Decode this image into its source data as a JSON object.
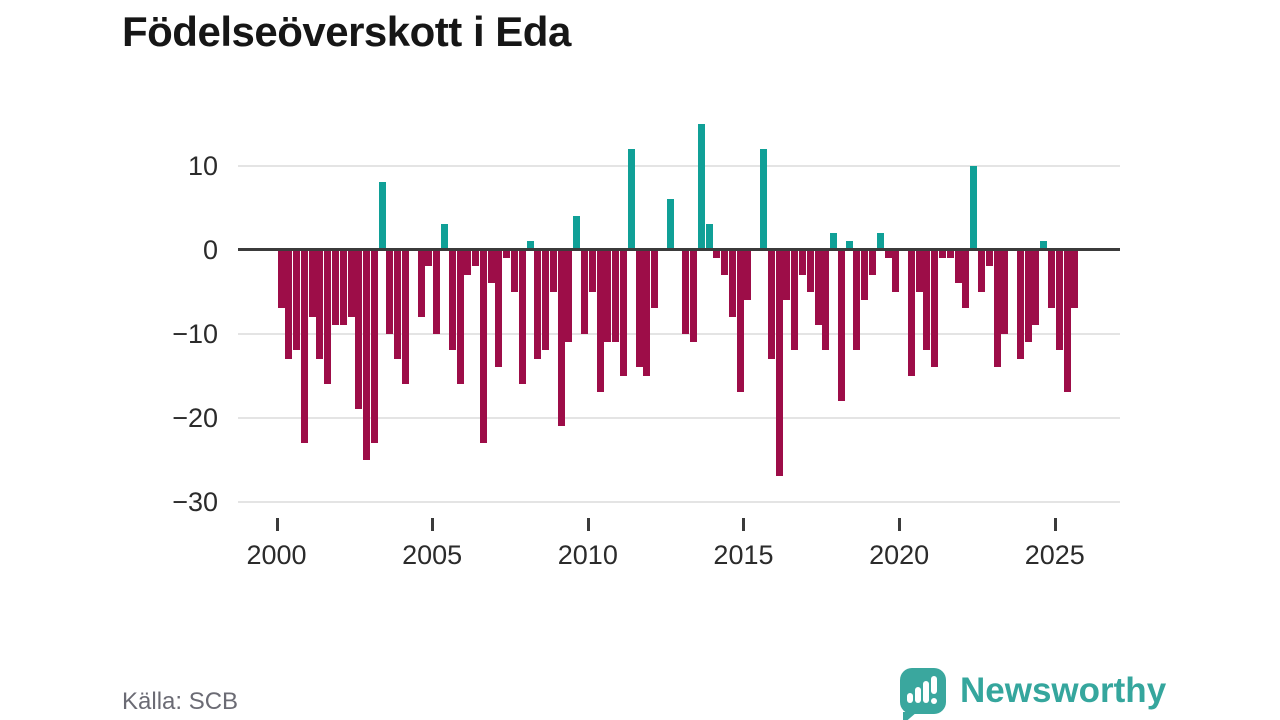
{
  "title": "Födelseöverskott i Eda",
  "source": {
    "label": "Källa: SCB"
  },
  "branding": {
    "name": "Newsworthy",
    "logo_icon": "speech-bubble-bar-chart-icon"
  },
  "colors": {
    "positive_bar": "#10a097",
    "negative_bar": "#9d0d48",
    "zero_line": "#3b3b3b",
    "gridline": "#e4e4e4",
    "title_text": "#161616",
    "axis_text": "#2b2b2b",
    "source_text": "#6b6b74",
    "brand_teal": "#35a69d"
  },
  "chart_data": {
    "type": "bar",
    "title": "Födelseöverskott i Eda",
    "frequency": "quarterly",
    "grid": true,
    "legend": false,
    "ylim": [
      -30,
      16
    ],
    "y_axis": {
      "ticks": [
        10,
        0,
        -10,
        -20,
        -30
      ],
      "labels": [
        "10",
        "0",
        "−10",
        "−20",
        "−30"
      ]
    },
    "x_axis": {
      "ticks": [
        {
          "label": "2000",
          "index": 0
        },
        {
          "label": "2005",
          "index": 20
        },
        {
          "label": "2010",
          "index": 40
        },
        {
          "label": "2015",
          "index": 60
        },
        {
          "label": "2020",
          "index": 80
        },
        {
          "label": "2025",
          "index": 100
        }
      ]
    },
    "points": [
      [
        "2000 Q1",
        -7
      ],
      [
        "2000 Q2",
        -13
      ],
      [
        "2000 Q3",
        -12
      ],
      [
        "2000 Q4",
        -23
      ],
      [
        "2001 Q1",
        -8
      ],
      [
        "2001 Q2",
        -13
      ],
      [
        "2001 Q3",
        -16
      ],
      [
        "2001 Q4",
        -9
      ],
      [
        "2002 Q1",
        -9
      ],
      [
        "2002 Q2",
        -8
      ],
      [
        "2002 Q3",
        -19
      ],
      [
        "2002 Q4",
        -25
      ],
      [
        "2003 Q1",
        -23
      ],
      [
        "2003 Q2",
        8
      ],
      [
        "2003 Q3",
        -10
      ],
      [
        "2003 Q4",
        -13
      ],
      [
        "2004 Q1",
        -16
      ],
      [
        "2004 Q2",
        0
      ],
      [
        "2004 Q3",
        -8
      ],
      [
        "2004 Q4",
        -2
      ],
      [
        "2005 Q1",
        -10
      ],
      [
        "2005 Q2",
        3
      ],
      [
        "2005 Q3",
        -12
      ],
      [
        "2005 Q4",
        -16
      ],
      [
        "2006 Q1",
        -3
      ],
      [
        "2006 Q2",
        -2
      ],
      [
        "2006 Q3",
        -23
      ],
      [
        "2006 Q4",
        -4
      ],
      [
        "2007 Q1",
        -14
      ],
      [
        "2007 Q2",
        -1
      ],
      [
        "2007 Q3",
        -5
      ],
      [
        "2007 Q4",
        -16
      ],
      [
        "2008 Q1",
        1
      ],
      [
        "2008 Q2",
        -13
      ],
      [
        "2008 Q3",
        -12
      ],
      [
        "2008 Q4",
        -5
      ],
      [
        "2009 Q1",
        -21
      ],
      [
        "2009 Q2",
        -11
      ],
      [
        "2009 Q3",
        4
      ],
      [
        "2009 Q4",
        -10
      ],
      [
        "2010 Q1",
        -5
      ],
      [
        "2010 Q2",
        -17
      ],
      [
        "2010 Q3",
        -11
      ],
      [
        "2010 Q4",
        -11
      ],
      [
        "2011 Q1",
        -15
      ],
      [
        "2011 Q2",
        12
      ],
      [
        "2011 Q3",
        -14
      ],
      [
        "2011 Q4",
        -15
      ],
      [
        "2012 Q1",
        -7
      ],
      [
        "2012 Q2",
        0
      ],
      [
        "2012 Q3",
        6
      ],
      [
        "2012 Q4",
        0
      ],
      [
        "2013 Q1",
        -10
      ],
      [
        "2013 Q2",
        -11
      ],
      [
        "2013 Q3",
        15
      ],
      [
        "2013 Q4",
        3
      ],
      [
        "2014 Q1",
        -1
      ],
      [
        "2014 Q2",
        -3
      ],
      [
        "2014 Q3",
        -8
      ],
      [
        "2014 Q4",
        -17
      ],
      [
        "2015 Q1",
        -6
      ],
      [
        "2015 Q2",
        0
      ],
      [
        "2015 Q3",
        12
      ],
      [
        "2015 Q4",
        -13
      ],
      [
        "2016 Q1",
        -27
      ],
      [
        "2016 Q2",
        -6
      ],
      [
        "2016 Q3",
        -12
      ],
      [
        "2016 Q4",
        -3
      ],
      [
        "2017 Q1",
        -5
      ],
      [
        "2017 Q2",
        -9
      ],
      [
        "2017 Q3",
        -12
      ],
      [
        "2017 Q4",
        2
      ],
      [
        "2018 Q1",
        -18
      ],
      [
        "2018 Q2",
        1
      ],
      [
        "2018 Q3",
        -12
      ],
      [
        "2018 Q4",
        -6
      ],
      [
        "2019 Q1",
        -3
      ],
      [
        "2019 Q2",
        2
      ],
      [
        "2019 Q3",
        -1
      ],
      [
        "2019 Q4",
        -5
      ],
      [
        "2020 Q1",
        0
      ],
      [
        "2020 Q2",
        -15
      ],
      [
        "2020 Q3",
        -5
      ],
      [
        "2020 Q4",
        -12
      ],
      [
        "2021 Q1",
        -14
      ],
      [
        "2021 Q2",
        -1
      ],
      [
        "2021 Q3",
        -1
      ],
      [
        "2021 Q4",
        -4
      ],
      [
        "2022 Q1",
        -7
      ],
      [
        "2022 Q2",
        10
      ],
      [
        "2022 Q3",
        -5
      ],
      [
        "2022 Q4",
        -2
      ],
      [
        "2023 Q1",
        -14
      ],
      [
        "2023 Q2",
        -10
      ],
      [
        "2023 Q3",
        0
      ],
      [
        "2023 Q4",
        -13
      ],
      [
        "2024 Q1",
        -11
      ],
      [
        "2024 Q2",
        -9
      ],
      [
        "2024 Q3",
        1
      ],
      [
        "2024 Q4",
        -7
      ],
      [
        "2025 Q1",
        -12
      ],
      [
        "2025 Q2",
        -17
      ],
      [
        "2025 Q3",
        -7
      ]
    ]
  }
}
